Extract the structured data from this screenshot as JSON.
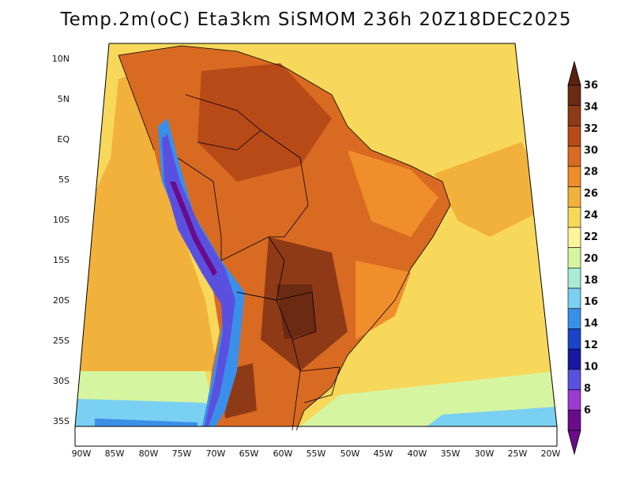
{
  "title": "Temp.2m(oC) Eta3km SiSMOM 236h 20Z18DEC2025",
  "lat_labels": [
    "10N",
    "5N",
    "EQ",
    "5S",
    "10S",
    "15S",
    "20S",
    "25S",
    "30S",
    "35S"
  ],
  "lon_labels": [
    "90W",
    "85W",
    "80W",
    "75W",
    "70W",
    "65W",
    "60W",
    "55W",
    "50W",
    "45W",
    "40W",
    "35W",
    "30W",
    "25W",
    "20W"
  ],
  "colorbar": {
    "labels": [
      "36",
      "34",
      "32",
      "30",
      "28",
      "26",
      "24",
      "22",
      "20",
      "18",
      "16",
      "14",
      "12",
      "10",
      "8",
      "6"
    ],
    "colors": [
      "#6b2a12",
      "#8f3a16",
      "#b84a18",
      "#d96a22",
      "#ef8e2a",
      "#f2b13a",
      "#f7d85a",
      "#fbf49a",
      "#d6f5a0",
      "#a8ecd6",
      "#7ad0f2",
      "#3a8fe8",
      "#1a44c8",
      "#1a18a0",
      "#5a50e0",
      "#9a3ad0",
      "#6a0c8a"
    ],
    "top_color": "#5a2010",
    "bottom_color": "#6a0c8a"
  },
  "field_colors": {
    "ocean_north": "#f7d85a",
    "ocean_west": "#f2b13a",
    "ocean_south_cool": "#d6f5a0",
    "ocean_far_south": "#7ad0f2",
    "land_hot": "#d96a22",
    "land_very_hot": "#8f3a16",
    "andes_cold": "#3a8fe8",
    "andes_very_cold": "#5a50e0"
  }
}
